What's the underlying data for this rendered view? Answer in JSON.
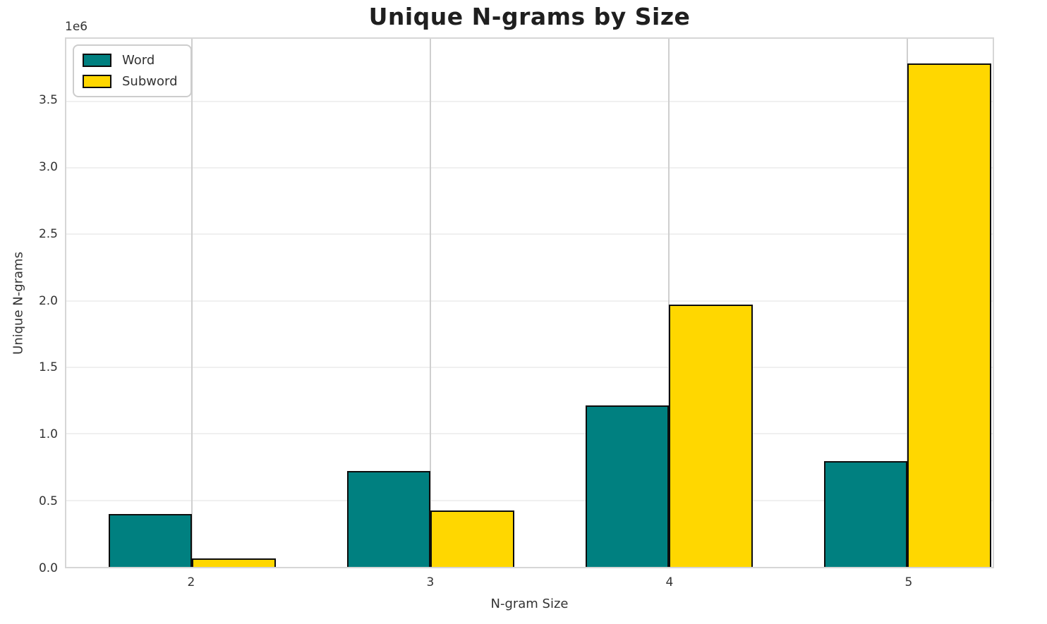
{
  "chart_data": {
    "type": "bar",
    "title": "Unique N-grams by Size",
    "xlabel": "N-gram Size",
    "ylabel": "Unique N-grams",
    "y_offset_label": "1e6",
    "categories": [
      "2",
      "3",
      "4",
      "5"
    ],
    "series": [
      {
        "name": "Word",
        "color": "#008080",
        "values": [
          395000,
          722000,
          1215000,
          795000
        ]
      },
      {
        "name": "Subword",
        "color": "#FFD700",
        "values": [
          62000,
          425000,
          1972000,
          3785000
        ]
      }
    ],
    "ylim": [
      0,
      3970000
    ],
    "axis_max": 3970000,
    "yticks": [
      {
        "label": "0.0",
        "value": 0
      },
      {
        "label": "0.5",
        "value": 500000
      },
      {
        "label": "1.0",
        "value": 1000000
      },
      {
        "label": "1.5",
        "value": 1500000
      },
      {
        "label": "2.0",
        "value": 2000000
      },
      {
        "label": "2.5",
        "value": 2500000
      },
      {
        "label": "3.0",
        "value": 3000000
      },
      {
        "label": "3.5",
        "value": 3500000
      }
    ],
    "grid": "on",
    "legend_position": "upper left",
    "colors": {
      "bar_edge": "#0d0d0d",
      "grid_horizontal": "#f0f0f0",
      "grid_vertical": "#cfcfcf",
      "spine": "#d6d6d6",
      "text": "#333333",
      "title": "#1f1f1f",
      "background": "#ffffff"
    }
  }
}
